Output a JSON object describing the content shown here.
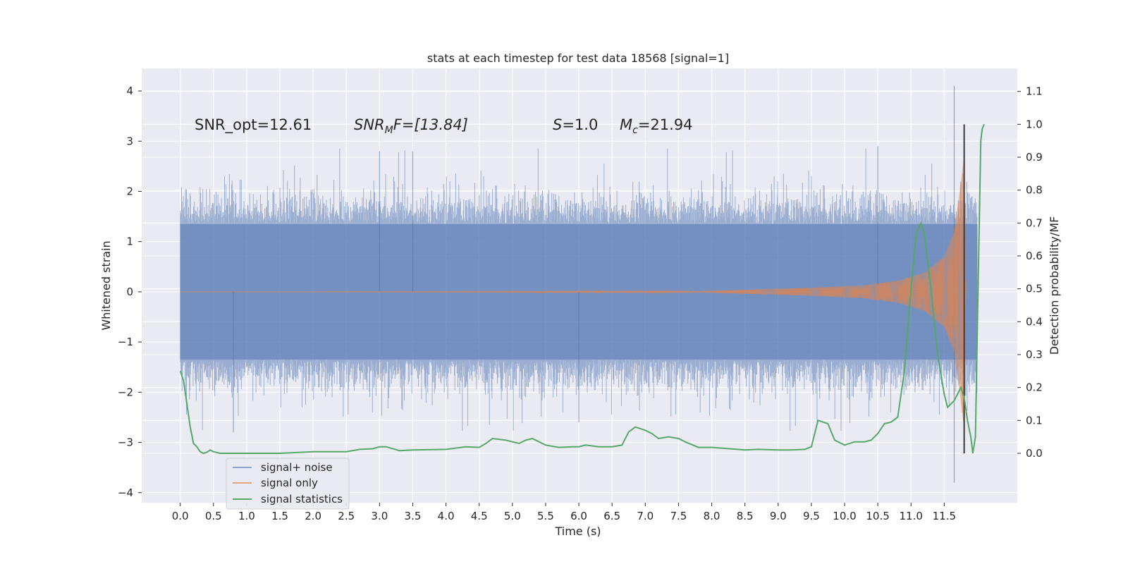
{
  "chart_data": {
    "type": "line",
    "title": "stats at each timestep for test data 18568 [signal=1]",
    "xlabel": "Time (s)",
    "ylabel": "Whitened strain",
    "y2label": "Detection probability/MF",
    "xlim": [
      -0.58,
      12.6
    ],
    "ylim": [
      -4.2,
      4.45
    ],
    "y2lim": [
      -0.15,
      1.17
    ],
    "x_ticks": [
      "0.0",
      "0.5",
      "1.0",
      "1.5",
      "2.0",
      "2.5",
      "3.0",
      "3.5",
      "4.0",
      "4.5",
      "5.0",
      "5.5",
      "6.0",
      "6.5",
      "7.0",
      "7.5",
      "8.0",
      "8.5",
      "9.0",
      "9.5",
      "10.0",
      "10.5",
      "11.0",
      "11.5"
    ],
    "y_ticks": [
      "4",
      "3",
      "2",
      "1",
      "0",
      "−1",
      "−2",
      "−3",
      "−4"
    ],
    "y2_ticks": [
      "1.1",
      "1.0",
      "0.9",
      "0.8",
      "0.7",
      "0.6",
      "0.5",
      "0.4",
      "0.3",
      "0.2",
      "0.1",
      "0.0"
    ],
    "annotations": {
      "snr_opt": "SNR_opt=12.61",
      "snr_mf_sym": "SNR",
      "snr_mf_sub": "M",
      "snr_mf_rest": "F=[13.84]",
      "s_sym": "S",
      "s_rest": "=1.0",
      "mc_sym": "M",
      "mc_sub": "c",
      "mc_rest": "=21.94"
    },
    "grid": true,
    "legend_position": "lower-left",
    "colors": {
      "background": "#eaeaf2",
      "grid": "#ffffff",
      "signal_noise": "#4c72b0",
      "signal_only": "#dd8452",
      "signal_statistics": "#55a868",
      "vline": "#3a3a3a"
    },
    "series": [
      {
        "name": "signal+ noise",
        "axis": "left",
        "style": "band",
        "x": [
          0.0,
          11.9999
        ],
        "core_band": [
          -1.35,
          1.35
        ],
        "spike_range": [
          -3.8,
          4.1
        ],
        "notable_peaks": [
          [
            11.65,
            4.1
          ],
          [
            11.65,
            -3.8
          ],
          [
            3.0,
            2.8
          ],
          [
            3.5,
            2.8
          ],
          [
            0.8,
            -2.8
          ],
          [
            6.0,
            -2.6
          ],
          [
            10.5,
            2.9
          ]
        ]
      },
      {
        "name": "signal only",
        "axis": "left",
        "style": "chirp",
        "x": [
          0.0,
          11.83
        ],
        "envelope": [
          [
            0.0,
            0.0
          ],
          [
            8.0,
            0.02
          ],
          [
            9.5,
            0.08
          ],
          [
            10.3,
            0.13
          ],
          [
            10.8,
            0.22
          ],
          [
            11.2,
            0.38
          ],
          [
            11.5,
            0.7
          ],
          [
            11.65,
            1.2
          ],
          [
            11.75,
            2.2
          ],
          [
            11.8,
            2.7
          ],
          [
            11.83,
            0.0
          ]
        ]
      },
      {
        "name": "signal statistics",
        "axis": "right",
        "style": "line",
        "points": [
          [
            0.0,
            0.25
          ],
          [
            0.05,
            0.22
          ],
          [
            0.1,
            0.15
          ],
          [
            0.15,
            0.08
          ],
          [
            0.2,
            0.03
          ],
          [
            0.25,
            0.02
          ],
          [
            0.3,
            0.005
          ],
          [
            0.35,
            0.0
          ],
          [
            0.4,
            0.003
          ],
          [
            0.45,
            0.01
          ],
          [
            0.5,
            0.005
          ],
          [
            0.6,
            0.0
          ],
          [
            0.8,
            0.0
          ],
          [
            1.0,
            0.0
          ],
          [
            1.5,
            0.0
          ],
          [
            2.0,
            0.005
          ],
          [
            2.5,
            0.005
          ],
          [
            2.7,
            0.012
          ],
          [
            2.9,
            0.014
          ],
          [
            3.0,
            0.02
          ],
          [
            3.1,
            0.02
          ],
          [
            3.3,
            0.008
          ],
          [
            3.5,
            0.01
          ],
          [
            4.0,
            0.012
          ],
          [
            4.3,
            0.02
          ],
          [
            4.5,
            0.018
          ],
          [
            4.6,
            0.03
          ],
          [
            4.7,
            0.045
          ],
          [
            4.9,
            0.04
          ],
          [
            5.1,
            0.03
          ],
          [
            5.2,
            0.04
          ],
          [
            5.3,
            0.045
          ],
          [
            5.5,
            0.025
          ],
          [
            5.7,
            0.018
          ],
          [
            5.9,
            0.02
          ],
          [
            6.0,
            0.02
          ],
          [
            6.1,
            0.025
          ],
          [
            6.3,
            0.02
          ],
          [
            6.5,
            0.02
          ],
          [
            6.65,
            0.025
          ],
          [
            6.75,
            0.065
          ],
          [
            6.85,
            0.08
          ],
          [
            7.0,
            0.07
          ],
          [
            7.1,
            0.06
          ],
          [
            7.2,
            0.045
          ],
          [
            7.35,
            0.05
          ],
          [
            7.5,
            0.045
          ],
          [
            7.6,
            0.035
          ],
          [
            7.8,
            0.018
          ],
          [
            8.0,
            0.018
          ],
          [
            8.2,
            0.015
          ],
          [
            8.5,
            0.01
          ],
          [
            8.7,
            0.012
          ],
          [
            9.0,
            0.01
          ],
          [
            9.2,
            0.01
          ],
          [
            9.4,
            0.012
          ],
          [
            9.5,
            0.02
          ],
          [
            9.6,
            0.1
          ],
          [
            9.75,
            0.09
          ],
          [
            9.85,
            0.04
          ],
          [
            10.0,
            0.025
          ],
          [
            10.15,
            0.035
          ],
          [
            10.3,
            0.035
          ],
          [
            10.4,
            0.04
          ],
          [
            10.5,
            0.06
          ],
          [
            10.6,
            0.09
          ],
          [
            10.7,
            0.095
          ],
          [
            10.8,
            0.11
          ],
          [
            10.9,
            0.25
          ],
          [
            11.0,
            0.5
          ],
          [
            11.08,
            0.67
          ],
          [
            11.15,
            0.7
          ],
          [
            11.2,
            0.67
          ],
          [
            11.3,
            0.5
          ],
          [
            11.4,
            0.3
          ],
          [
            11.5,
            0.18
          ],
          [
            11.55,
            0.14
          ],
          [
            11.65,
            0.16
          ],
          [
            11.7,
            0.18
          ],
          [
            11.75,
            0.2
          ],
          [
            11.8,
            0.17
          ],
          [
            11.85,
            0.1
          ],
          [
            11.9,
            0.05
          ],
          [
            11.93,
            0.0
          ],
          [
            11.97,
            0.05
          ],
          [
            12.0,
            0.4
          ],
          [
            12.05,
            0.95
          ],
          [
            12.07,
            0.985
          ],
          [
            12.1,
            1.0
          ]
        ]
      }
    ],
    "vline_x": 11.8
  },
  "legend": {
    "items": [
      "signal+ noise",
      "signal only",
      "signal statistics"
    ]
  }
}
